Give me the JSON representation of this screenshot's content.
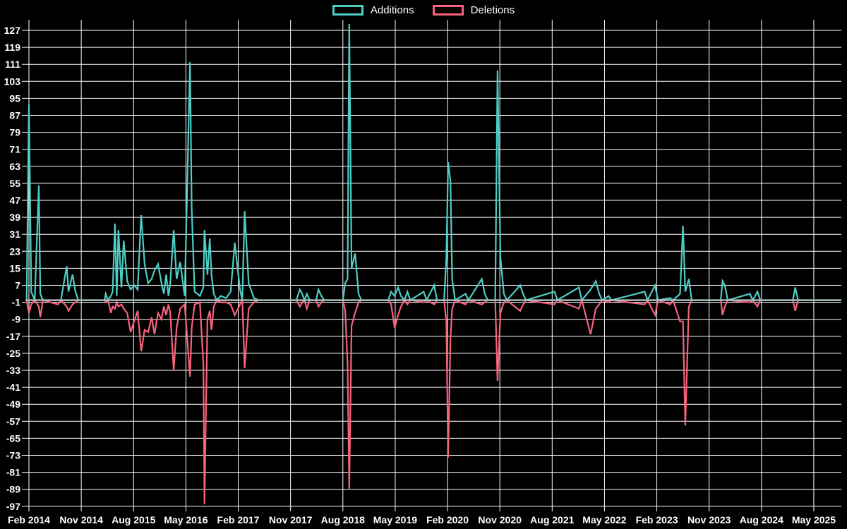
{
  "chart_title": "",
  "legend": [
    {
      "label": "Additions",
      "color": "#4ECDC4"
    },
    {
      "label": "Deletions",
      "color": "#F8627D"
    }
  ],
  "chart_data": {
    "type": "line",
    "description": "Weekly code additions (teal) and deletions (pink) over time; gray zero baseline drawn on top; black background with white grid.",
    "x_axis": {
      "tick_labels": [
        "Feb 2014",
        "Nov 2014",
        "Aug 2015",
        "May 2016",
        "Feb 2017",
        "Nov 2017",
        "Aug 2018",
        "May 2019",
        "Feb 2020",
        "Nov 2020",
        "Aug 2021",
        "May 2022",
        "Feb 2023",
        "Nov 2023",
        "Aug 2024",
        "May 2025"
      ],
      "tick_interval_months": 9,
      "start_month": "2014-02",
      "end_offset_months": 139.5
    },
    "y_axis": {
      "ticks": [
        127,
        119,
        111,
        103,
        95,
        87,
        79,
        71,
        63,
        55,
        47,
        39,
        31,
        23,
        15,
        7,
        -1,
        -9,
        -17,
        -25,
        -33,
        -41,
        -49,
        -57,
        -65,
        -73,
        -81,
        -89,
        -97
      ],
      "min": -97,
      "max": 127,
      "step": 8
    },
    "grid": {
      "color": "#FFFFFF",
      "background": "#000000",
      "shown": true
    },
    "zero_line_color": "#A9BDC0",
    "series_meta": [
      {
        "name": "Additions",
        "color": "#4ECDC4",
        "index": 1
      },
      {
        "name": "Deletions",
        "color": "#F8627D",
        "index": 2
      }
    ],
    "points_format": "[months_since_2014_02, additions, deletions]",
    "points": [
      [
        -0.4,
        0,
        0
      ],
      [
        0,
        92,
        -6
      ],
      [
        0.4,
        4,
        -2
      ],
      [
        1,
        0,
        0
      ],
      [
        1.7,
        54,
        -3
      ],
      [
        1.95,
        3,
        -8
      ],
      [
        2.4,
        0,
        0
      ],
      [
        5,
        0,
        -2
      ],
      [
        5.5,
        0,
        0
      ],
      [
        6.5,
        16,
        -3
      ],
      [
        6.8,
        4,
        -5
      ],
      [
        7.5,
        12,
        -2
      ],
      [
        8,
        4,
        -1
      ],
      [
        8.5,
        0,
        0
      ],
      [
        13,
        0,
        0
      ],
      [
        13.2,
        3,
        -1
      ],
      [
        13.6,
        0,
        0
      ],
      [
        14.1,
        2,
        -6
      ],
      [
        14.4,
        4,
        -3
      ],
      [
        14.8,
        36,
        -4
      ],
      [
        15.1,
        2,
        -1
      ],
      [
        15.4,
        33,
        -3
      ],
      [
        15.9,
        6,
        -2
      ],
      [
        16.3,
        28,
        -4
      ],
      [
        16.9,
        9,
        -6
      ],
      [
        17.5,
        5,
        -15
      ],
      [
        18.1,
        7,
        -10
      ],
      [
        18.7,
        5,
        -5
      ],
      [
        19.3,
        40,
        -24
      ],
      [
        19.9,
        17,
        -14
      ],
      [
        20.5,
        8,
        -15
      ],
      [
        21.1,
        10,
        -8
      ],
      [
        21.6,
        14,
        -16
      ],
      [
        22.2,
        17,
        -6
      ],
      [
        22.8,
        8,
        -9
      ],
      [
        23.2,
        3,
        -3
      ],
      [
        23.6,
        12,
        -7
      ],
      [
        24,
        2,
        -2
      ],
      [
        24.3,
        8,
        -6
      ],
      [
        24.9,
        33,
        -33
      ],
      [
        25.4,
        10,
        -13
      ],
      [
        26,
        18,
        -4
      ],
      [
        26.8,
        2,
        -2
      ],
      [
        27.7,
        112,
        -36
      ],
      [
        28,
        43,
        -13
      ],
      [
        28.5,
        4,
        -2
      ],
      [
        29.4,
        2,
        -1
      ],
      [
        30,
        6,
        -30
      ],
      [
        30.2,
        33,
        -96
      ],
      [
        30.7,
        12,
        -9
      ],
      [
        31.1,
        29,
        -5
      ],
      [
        31.4,
        12,
        -14
      ],
      [
        31.8,
        3,
        -3
      ],
      [
        32.3,
        0,
        0
      ],
      [
        33,
        2,
        -1
      ],
      [
        33.9,
        1,
        -1
      ],
      [
        34.7,
        4,
        -2
      ],
      [
        35.4,
        27,
        -7
      ],
      [
        36.3,
        5,
        -2
      ],
      [
        36.7,
        0,
        0
      ],
      [
        37.1,
        42,
        -32
      ],
      [
        37.8,
        8,
        -4
      ],
      [
        38.7,
        1,
        -1
      ],
      [
        39.5,
        0,
        0
      ],
      [
        46,
        0,
        0
      ],
      [
        46.6,
        5,
        -3
      ],
      [
        47,
        3,
        -1
      ],
      [
        47.4,
        0,
        0
      ],
      [
        47.8,
        3,
        -4
      ],
      [
        48.3,
        0,
        0
      ],
      [
        49.4,
        0,
        0
      ],
      [
        49.8,
        5,
        -3
      ],
      [
        50.3,
        2,
        -1
      ],
      [
        50.8,
        0,
        0
      ],
      [
        54,
        0,
        0
      ],
      [
        54.4,
        8,
        -5
      ],
      [
        54.8,
        10,
        -30
      ],
      [
        55.1,
        130,
        -89
      ],
      [
        55.5,
        15,
        -12
      ],
      [
        56.1,
        22,
        -6
      ],
      [
        56.7,
        3,
        -1
      ],
      [
        57.2,
        0,
        0
      ],
      [
        61.8,
        0,
        0
      ],
      [
        62.3,
        4,
        -2
      ],
      [
        62.9,
        2,
        -13
      ],
      [
        63.5,
        6,
        -7
      ],
      [
        64,
        2,
        -3
      ],
      [
        64.6,
        0,
        0
      ],
      [
        65.1,
        4,
        -2
      ],
      [
        65.6,
        0,
        0
      ],
      [
        67.9,
        4,
        -1
      ],
      [
        68.4,
        0,
        0
      ],
      [
        69.7,
        7,
        -2
      ],
      [
        70.2,
        0,
        0
      ],
      [
        71.4,
        0,
        0
      ],
      [
        71.8,
        20,
        -10
      ],
      [
        72.1,
        65,
        -74
      ],
      [
        72.5,
        56,
        -18
      ],
      [
        72.8,
        10,
        -4
      ],
      [
        73.3,
        0,
        0
      ],
      [
        75.1,
        3,
        -2
      ],
      [
        75.6,
        0,
        0
      ],
      [
        77.9,
        10,
        -2
      ],
      [
        78.4,
        3,
        -1
      ],
      [
        78.9,
        0,
        0
      ],
      [
        80.2,
        0,
        0
      ],
      [
        80.6,
        108,
        -38
      ],
      [
        81.1,
        20,
        -6
      ],
      [
        81.7,
        3,
        -1
      ],
      [
        82.2,
        0,
        0
      ],
      [
        84.5,
        7,
        -5
      ],
      [
        85,
        3,
        -2
      ],
      [
        85.5,
        0,
        0
      ],
      [
        90.4,
        4,
        -2
      ],
      [
        90.9,
        0,
        0
      ],
      [
        94.6,
        6,
        -4
      ],
      [
        95.1,
        0,
        0
      ],
      [
        96.6,
        5,
        -16
      ],
      [
        97.5,
        9,
        -4
      ],
      [
        98.1,
        3,
        -2
      ],
      [
        98.6,
        0,
        0
      ],
      [
        99.7,
        2,
        -1
      ],
      [
        100.2,
        0,
        0
      ],
      [
        105.9,
        4,
        -2
      ],
      [
        106.4,
        0,
        0
      ],
      [
        107.7,
        7,
        -7
      ],
      [
        108.2,
        0,
        0
      ],
      [
        110.3,
        1,
        -2
      ],
      [
        110.8,
        0,
        0
      ],
      [
        112,
        3,
        -10
      ],
      [
        112.5,
        35,
        -10
      ],
      [
        112.9,
        4,
        -59
      ],
      [
        113.5,
        10,
        -3
      ],
      [
        114,
        0,
        0
      ],
      [
        119,
        0,
        0
      ],
      [
        119.3,
        9,
        -7
      ],
      [
        119.7,
        7,
        -3
      ],
      [
        120.2,
        0,
        0
      ],
      [
        124,
        3,
        -1
      ],
      [
        124.5,
        0,
        0
      ],
      [
        125.3,
        4,
        -3
      ],
      [
        125.8,
        0,
        0
      ],
      [
        131.4,
        0,
        0
      ],
      [
        131.8,
        6,
        -5
      ],
      [
        132.3,
        0,
        0
      ],
      [
        139.5,
        0,
        0
      ]
    ]
  }
}
